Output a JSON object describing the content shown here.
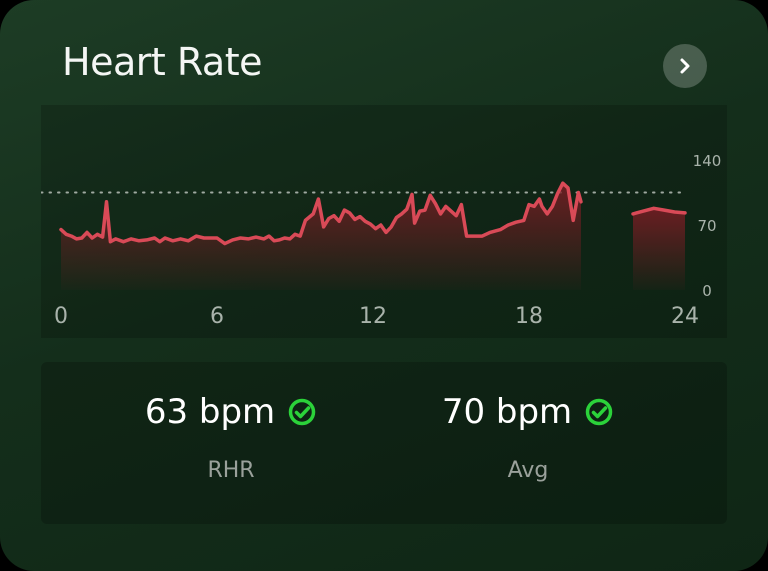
{
  "card": {
    "title": "Heart Rate",
    "open_icon": "chevron-right-icon"
  },
  "chart_data": {
    "type": "area",
    "title": "",
    "xlabel": "",
    "ylabel": "",
    "x_ticks": [
      "0",
      "6",
      "12",
      "18",
      "24"
    ],
    "y_ticks": [
      "140",
      "70",
      "0"
    ],
    "xlim": [
      0,
      24
    ],
    "ylim": [
      0,
      140
    ],
    "reference_line": 105,
    "series": [
      {
        "segments": [
          [
            [
              0.0,
              65
            ],
            [
              0.2,
              60
            ],
            [
              0.4,
              58
            ],
            [
              0.6,
              55
            ],
            [
              0.8,
              56
            ],
            [
              1.0,
              62
            ],
            [
              1.2,
              56
            ],
            [
              1.4,
              60
            ],
            [
              1.6,
              57
            ],
            [
              1.75,
              95
            ],
            [
              1.9,
              52
            ],
            [
              2.1,
              55
            ],
            [
              2.4,
              52
            ],
            [
              2.7,
              55
            ],
            [
              3.0,
              53
            ],
            [
              3.3,
              54
            ],
            [
              3.6,
              56
            ],
            [
              3.8,
              52
            ],
            [
              4.0,
              56
            ],
            [
              4.3,
              53
            ],
            [
              4.6,
              55
            ],
            [
              4.9,
              53
            ],
            [
              5.2,
              58
            ],
            [
              5.5,
              56
            ],
            [
              6.0,
              56
            ],
            [
              6.3,
              50
            ],
            [
              6.6,
              54
            ],
            [
              6.9,
              56
            ],
            [
              7.2,
              55
            ],
            [
              7.5,
              57
            ],
            [
              7.8,
              55
            ],
            [
              8.0,
              58
            ],
            [
              8.2,
              53
            ],
            [
              8.4,
              54
            ],
            [
              8.6,
              56
            ],
            [
              8.8,
              55
            ],
            [
              9.0,
              60
            ],
            [
              9.2,
              58
            ],
            [
              9.4,
              75
            ],
            [
              9.7,
              82
            ],
            [
              9.9,
              98
            ],
            [
              10.1,
              68
            ],
            [
              10.3,
              77
            ],
            [
              10.5,
              80
            ],
            [
              10.7,
              74
            ],
            [
              10.9,
              86
            ],
            [
              11.1,
              83
            ],
            [
              11.3,
              76
            ],
            [
              11.5,
              79
            ],
            [
              11.7,
              74
            ],
            [
              11.9,
              71
            ],
            [
              12.1,
              66
            ],
            [
              12.3,
              70
            ],
            [
              12.5,
              62
            ],
            [
              12.7,
              68
            ],
            [
              12.9,
              78
            ],
            [
              13.1,
              82
            ],
            [
              13.3,
              87
            ],
            [
              13.5,
              103
            ],
            [
              13.6,
              72
            ],
            [
              13.8,
              85
            ],
            [
              14.0,
              86
            ],
            [
              14.2,
              102
            ],
            [
              14.4,
              93
            ],
            [
              14.6,
              82
            ],
            [
              14.8,
              90
            ],
            [
              15.0,
              85
            ],
            [
              15.2,
              80
            ],
            [
              15.4,
              92
            ],
            [
              15.6,
              58
            ],
            [
              15.9,
              58
            ],
            [
              16.2,
              58
            ],
            [
              16.5,
              62
            ],
            [
              16.9,
              65
            ],
            [
              17.2,
              70
            ],
            [
              17.5,
              73
            ],
            [
              17.8,
              75
            ],
            [
              18.0,
              92
            ],
            [
              18.2,
              90
            ],
            [
              18.4,
              98
            ],
            [
              18.5,
              90
            ],
            [
              18.7,
              82
            ],
            [
              18.9,
              90
            ],
            [
              19.1,
              104
            ],
            [
              19.3,
              115
            ],
            [
              19.5,
              110
            ],
            [
              19.7,
              75
            ],
            [
              19.9,
              105
            ],
            [
              20.0,
              95
            ]
          ],
          [
            [
              22.0,
              82
            ],
            [
              22.4,
              85
            ],
            [
              22.8,
              88
            ],
            [
              23.2,
              86
            ],
            [
              23.6,
              84
            ],
            [
              24.0,
              83
            ]
          ]
        ]
      }
    ],
    "line_color": "#d94a57",
    "fill_color": "#7a1d24",
    "grid": false
  },
  "stats": {
    "rhr": {
      "value": "63 bpm",
      "label": "RHR"
    },
    "avg": {
      "value": "70 bpm",
      "label": "Avg"
    },
    "ok_icon": "check-circle-icon",
    "ok_color": "#2bd23a"
  }
}
